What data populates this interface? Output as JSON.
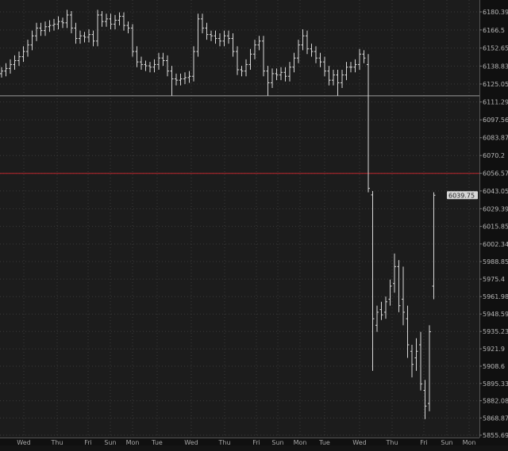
{
  "chart_data": {
    "type": "ohlc",
    "title": "",
    "xlabel": "",
    "ylabel": "",
    "ylim": [
      5855.69,
      6180.39
    ],
    "grid": true,
    "y_ticks": [
      "6180.39",
      "6166.5",
      "6152.65",
      "6138.83",
      "6125.05",
      "6111.29",
      "6097.56",
      "6083.87",
      "6070.2",
      "6056.57",
      "6043.05",
      "6029.39",
      "6015.85",
      "6002.34",
      "5988.85",
      "5975.4",
      "5961.98",
      "5948.59",
      "5935.23",
      "5921.9",
      "5908.6",
      "5895.33",
      "5882.08",
      "5868.87",
      "5855.69"
    ],
    "x_ticks": [
      "Wed",
      "Thu",
      "Fri",
      "Sun",
      "Mon",
      "Tue",
      "Wed",
      "Thu",
      "Fri",
      "Sun",
      "Mon",
      "Tue",
      "Wed",
      "Thu",
      "Fri",
      "Sun",
      "Mon"
    ],
    "last_price_label": "6039.75",
    "reference_lines": [
      {
        "price": 6116,
        "color": "#9a9a9a"
      },
      {
        "price": 6056.5,
        "color": "#c0272d"
      }
    ],
    "bar_color": "#d8d8d8",
    "background_color": "#1c1c1c",
    "bars": [
      [
        6133,
        6138,
        6130,
        6135
      ],
      [
        6135,
        6141,
        6131,
        6137
      ],
      [
        6137,
        6144,
        6133,
        6140
      ],
      [
        6140,
        6147,
        6136,
        6143
      ],
      [
        6143,
        6150,
        6139,
        6146
      ],
      [
        6146,
        6154,
        6142,
        6150
      ],
      [
        6150,
        6159,
        6146,
        6155
      ],
      [
        6155,
        6166,
        6151,
        6162
      ],
      [
        6162,
        6172,
        6158,
        6168
      ],
      [
        6168,
        6172,
        6162,
        6166
      ],
      [
        6166,
        6173,
        6162,
        6169
      ],
      [
        6169,
        6174,
        6165,
        6170
      ],
      [
        6170,
        6175,
        6166,
        6171
      ],
      [
        6171,
        6177,
        6167,
        6173
      ],
      [
        6173,
        6176,
        6168,
        6172
      ],
      [
        6172,
        6182,
        6168,
        6178
      ],
      [
        6178,
        6181,
        6164,
        6168
      ],
      [
        6168,
        6172,
        6156,
        6160
      ],
      [
        6160,
        6166,
        6156,
        6162
      ],
      [
        6162,
        6165,
        6157,
        6161
      ],
      [
        6161,
        6167,
        6157,
        6163
      ],
      [
        6163,
        6166,
        6154,
        6158
      ],
      [
        6158,
        6182,
        6154,
        6178
      ],
      [
        6178,
        6181,
        6169,
        6173
      ],
      [
        6173,
        6179,
        6169,
        6175
      ],
      [
        6175,
        6179,
        6167,
        6171
      ],
      [
        6171,
        6178,
        6167,
        6174
      ],
      [
        6174,
        6180,
        6170,
        6177
      ],
      [
        6177,
        6180,
        6166,
        6170
      ],
      [
        6170,
        6173,
        6164,
        6168
      ],
      [
        6168,
        6171,
        6146,
        6150
      ],
      [
        6150,
        6154,
        6138,
        6142
      ],
      [
        6142,
        6146,
        6136,
        6140
      ],
      [
        6140,
        6143,
        6135,
        6139
      ],
      [
        6139,
        6142,
        6134,
        6138
      ],
      [
        6138,
        6144,
        6134,
        6140
      ],
      [
        6140,
        6149,
        6136,
        6145
      ],
      [
        6145,
        6149,
        6139,
        6143
      ],
      [
        6143,
        6147,
        6131,
        6135
      ],
      [
        6135,
        6139,
        6116,
        6129
      ],
      [
        6129,
        6133,
        6124,
        6128
      ],
      [
        6128,
        6133,
        6124,
        6129
      ],
      [
        6129,
        6134,
        6125,
        6130
      ],
      [
        6130,
        6135,
        6126,
        6131
      ],
      [
        6131,
        6154,
        6127,
        6150
      ],
      [
        6150,
        6179,
        6146,
        6175
      ],
      [
        6175,
        6179,
        6164,
        6168
      ],
      [
        6168,
        6172,
        6159,
        6163
      ],
      [
        6163,
        6166,
        6158,
        6162
      ],
      [
        6162,
        6166,
        6156,
        6160
      ],
      [
        6160,
        6164,
        6154,
        6158
      ],
      [
        6158,
        6166,
        6154,
        6162
      ],
      [
        6162,
        6166,
        6156,
        6160
      ],
      [
        6160,
        6164,
        6146,
        6150
      ],
      [
        6150,
        6154,
        6132,
        6136
      ],
      [
        6136,
        6139,
        6131,
        6135
      ],
      [
        6135,
        6144,
        6131,
        6140
      ],
      [
        6140,
        6152,
        6136,
        6148
      ],
      [
        6148,
        6159,
        6144,
        6155
      ],
      [
        6155,
        6162,
        6151,
        6158
      ],
      [
        6158,
        6162,
        6131,
        6135
      ],
      [
        6135,
        6139,
        6116,
        6126
      ],
      [
        6126,
        6137,
        6122,
        6133
      ],
      [
        6133,
        6137,
        6128,
        6132
      ],
      [
        6132,
        6138,
        6128,
        6134
      ],
      [
        6134,
        6138,
        6127,
        6131
      ],
      [
        6131,
        6142,
        6127,
        6138
      ],
      [
        6138,
        6149,
        6134,
        6145
      ],
      [
        6145,
        6159,
        6141,
        6155
      ],
      [
        6155,
        6167,
        6151,
        6162
      ],
      [
        6162,
        6166,
        6148,
        6152
      ],
      [
        6152,
        6156,
        6146,
        6150
      ],
      [
        6150,
        6154,
        6141,
        6145
      ],
      [
        6145,
        6149,
        6138,
        6142
      ],
      [
        6142,
        6146,
        6131,
        6135
      ],
      [
        6135,
        6139,
        6124,
        6128
      ],
      [
        6128,
        6136,
        6124,
        6132
      ],
      [
        6132,
        6136,
        6116,
        6126
      ],
      [
        6126,
        6136,
        6122,
        6132
      ],
      [
        6132,
        6142,
        6128,
        6138
      ],
      [
        6138,
        6142,
        6134,
        6138
      ],
      [
        6138,
        6144,
        6134,
        6140
      ],
      [
        6140,
        6152,
        6136,
        6148
      ],
      [
        6148,
        6151,
        6141,
        6145
      ],
      [
        6140,
        6148,
        6042,
        6045
      ],
      [
        6040,
        6043,
        5905,
        5945
      ],
      [
        5940,
        5955,
        5935,
        5950
      ],
      [
        5952,
        5958,
        5944,
        5948
      ],
      [
        5950,
        5962,
        5945,
        5958
      ],
      [
        5960,
        5975,
        5955,
        5970
      ],
      [
        5972,
        5995,
        5965,
        5985
      ],
      [
        5985,
        5990,
        5950,
        5955
      ],
      [
        5960,
        5985,
        5940,
        5950
      ],
      [
        5945,
        5955,
        5915,
        5925
      ],
      [
        5920,
        5925,
        5900,
        5910
      ],
      [
        5915,
        5930,
        5905,
        5920
      ],
      [
        5925,
        5935,
        5890,
        5895
      ],
      [
        5890,
        5898,
        5868,
        5878
      ],
      [
        5880,
        5940,
        5874,
        5935
      ],
      [
        5970,
        6042,
        5960,
        6039.75
      ]
    ]
  }
}
